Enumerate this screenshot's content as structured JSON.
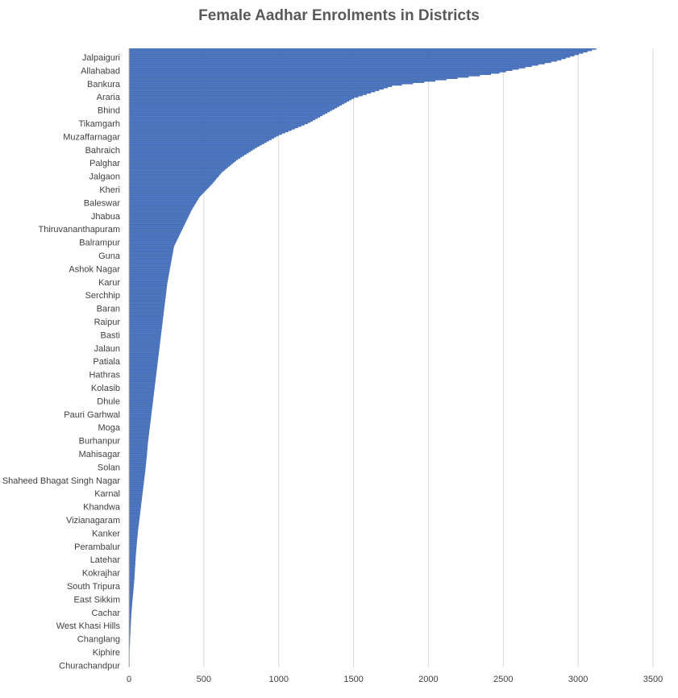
{
  "chart_data": {
    "type": "bar",
    "orientation": "horizontal",
    "title": "Female Aadhar Enrolments in Districts",
    "xlabel": "",
    "ylabel": "",
    "xlim": [
      0,
      3500
    ],
    "x_ticks": [
      0,
      500,
      1000,
      1500,
      2000,
      2500,
      3000,
      3500
    ],
    "grid": "vertical-major",
    "legend": "none",
    "bar_color": "#4472c4",
    "visible_category_labels": [
      "Jalpaiguri",
      "Allahabad",
      "Bankura",
      "Araria",
      "Bhind",
      "Tikamgarh",
      "Muzaffarnagar",
      "Bahraich",
      "Palghar",
      "Jalgaon",
      "Kheri",
      "Baleswar",
      "Jhabua",
      "Thiruvananthapuram",
      "Balrampur",
      "Guna",
      "Ashok Nagar",
      "Karur",
      "Serchhip",
      "Baran",
      "Raipur",
      "Basti",
      "Jalaun",
      "Patiala",
      "Hathras",
      "Kolasib",
      "Dhule",
      "Pauri Garhwal",
      "Moga",
      "Burhanpur",
      "Mahisagar",
      "Solan",
      "Shaheed Bhagat Singh Nagar",
      "Karnal",
      "Khandwa",
      "Vizianagaram",
      "Kanker",
      "Perambalur",
      "Latehar",
      "Kokrajhar",
      "South Tripura",
      "East Sikkim",
      "Cachar",
      "West Khasi Hills",
      "Changlang",
      "Kiphire",
      "Churachandpur"
    ],
    "profile_band_points": [
      3120,
      2850,
      2450,
      1760,
      1500,
      1350,
      1200,
      1000,
      850,
      720,
      620,
      550,
      470,
      420,
      380,
      340,
      300,
      285,
      270,
      255,
      245,
      235,
      225,
      215,
      205,
      195,
      185,
      175,
      165,
      155,
      145,
      135,
      125,
      118,
      110,
      100,
      90,
      80,
      70,
      60,
      52,
      45,
      40,
      35,
      28,
      20,
      14,
      10,
      6,
      3,
      2
    ]
  }
}
